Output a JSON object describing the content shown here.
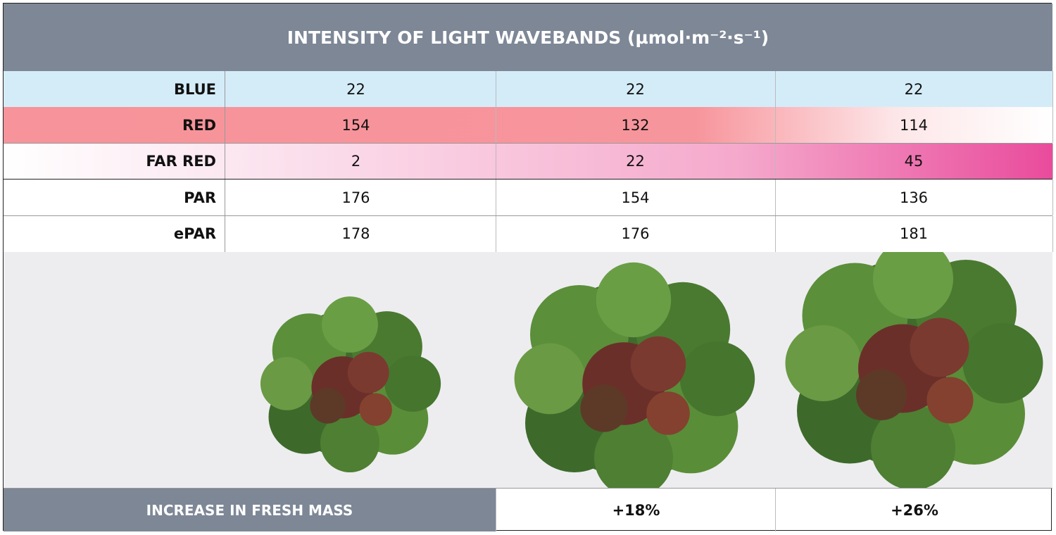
{
  "header": {
    "title": "INTENSITY OF LIGHT WAVEBANDS (µmol·m⁻²·s⁻¹)"
  },
  "table": {
    "rows": [
      [
        "BLUE",
        22,
        22,
        22
      ],
      [
        "RED",
        154,
        132,
        114
      ],
      [
        "FAR RED",
        2,
        22,
        45
      ],
      [
        "PAR",
        176,
        154,
        136
      ],
      [
        "ePAR",
        178,
        176,
        181
      ]
    ]
  },
  "footer": {
    "label": "INCREASE IN FRESH MASS",
    "values": [
      "+18%",
      "+26%"
    ]
  }
}
